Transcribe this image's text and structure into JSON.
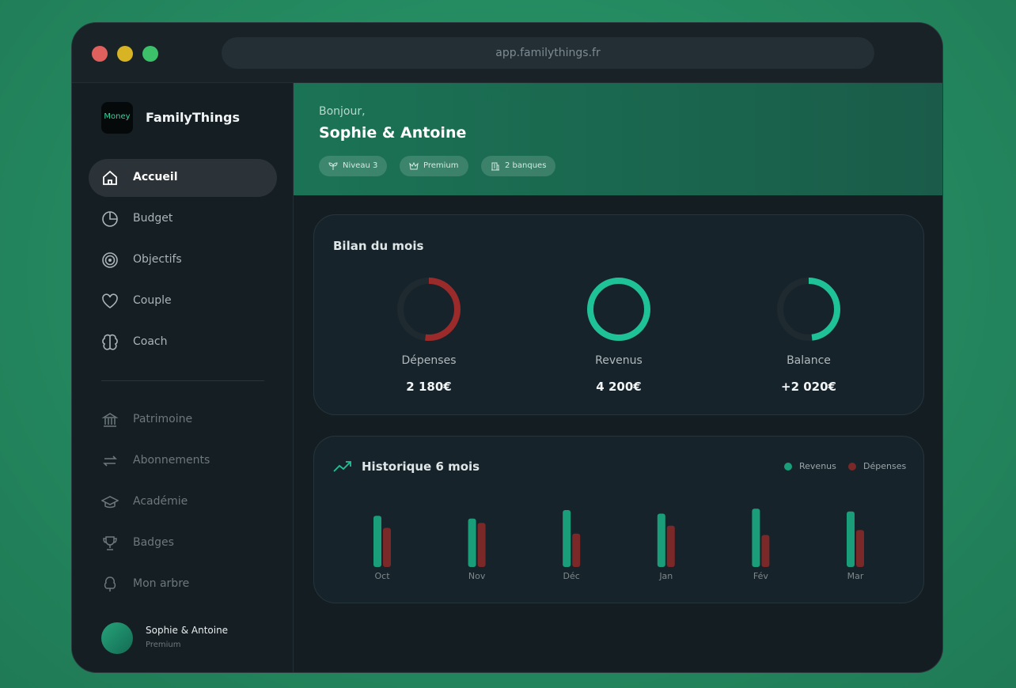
{
  "window": {
    "url": "app.familythings.fr"
  },
  "sidebar": {
    "logo_text": "Money",
    "brand": "FamilyThings",
    "nav": [
      "Accueil",
      "Budget",
      "Objectifs",
      "Couple",
      "Coach"
    ],
    "nav_secondary": [
      "Patrimoine",
      "Abonnements",
      "Académie",
      "Badges",
      "Mon arbre"
    ],
    "user": {
      "name": "Sophie & Antoine",
      "plan": "Premium"
    }
  },
  "header": {
    "greeting": "Bonjour,",
    "name": "Sophie & Antoine",
    "badges": [
      "Niveau 3",
      "Premium",
      "2 banques"
    ]
  },
  "summary": {
    "title": "Bilan du mois",
    "labels": [
      "Dépenses",
      "Revenus",
      "Balance"
    ],
    "values": [
      2180,
      4200,
      2020
    ],
    "value_labels": [
      "2 180€",
      "4 200€",
      "+2 020€"
    ],
    "colors": [
      "#9b2a2a",
      "#1fc296",
      "#1fc296"
    ]
  },
  "chart_data": {
    "type": "bar",
    "title": "Historique 6 mois",
    "categories": [
      "Oct",
      "Nov",
      "Déc",
      "Jan",
      "Fév",
      "Mar"
    ],
    "series": [
      {
        "name": "Revenus",
        "color": "#1a9e7a",
        "values": [
          72,
          68,
          80,
          75,
          82,
          78
        ]
      },
      {
        "name": "Dépenses",
        "color": "#7a2828",
        "values": [
          55,
          62,
          47,
          58,
          45,
          52
        ]
      }
    ],
    "ylim": [
      0,
      100
    ]
  }
}
